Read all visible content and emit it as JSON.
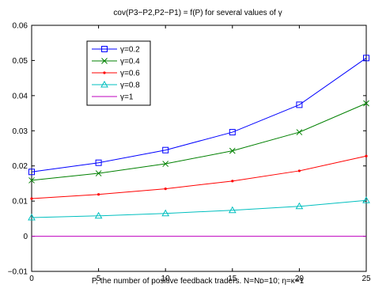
{
  "chart_data": {
    "type": "line",
    "title": "cov(P3−P2,P2−P1) = f(P)  for several values of γ",
    "xlabel": "P, the number of positive feedback traders. N=Nᴅ=10; η=κ=1",
    "ylabel": "",
    "x": [
      0,
      5,
      10,
      15,
      20,
      25
    ],
    "xlim": [
      0,
      25
    ],
    "ylim": [
      -0.01,
      0.06
    ],
    "xticks": [
      "0",
      "5",
      "10",
      "15",
      "20",
      "25"
    ],
    "yticks": [
      "−0.01",
      "0",
      "0.01",
      "0.02",
      "0.03",
      "0.04",
      "0.05",
      "0.06"
    ],
    "ytick_values": [
      -0.01,
      0,
      0.01,
      0.02,
      0.03,
      0.04,
      0.05,
      0.06
    ],
    "grid": false,
    "legend_position": "top-left",
    "series": [
      {
        "name": "γ=0.2",
        "color": "#0000ff",
        "marker": "square",
        "values": [
          0.0183,
          0.0209,
          0.0245,
          0.0296,
          0.0374,
          0.0507
        ]
      },
      {
        "name": "γ=0.4",
        "color": "#008000",
        "marker": "x",
        "values": [
          0.0159,
          0.0179,
          0.0206,
          0.0243,
          0.0296,
          0.0378
        ]
      },
      {
        "name": "γ=0.6",
        "color": "#ff0000",
        "marker": "dot",
        "values": [
          0.0107,
          0.0119,
          0.0135,
          0.0157,
          0.0186,
          0.0228
        ]
      },
      {
        "name": "γ=0.8",
        "color": "#00bfbf",
        "marker": "triangle",
        "values": [
          0.0053,
          0.0058,
          0.0065,
          0.0074,
          0.0085,
          0.0102
        ]
      },
      {
        "name": "γ=1",
        "color": "#bf00bf",
        "marker": "none",
        "values": [
          0,
          0,
          0,
          0,
          0,
          0
        ]
      }
    ]
  }
}
